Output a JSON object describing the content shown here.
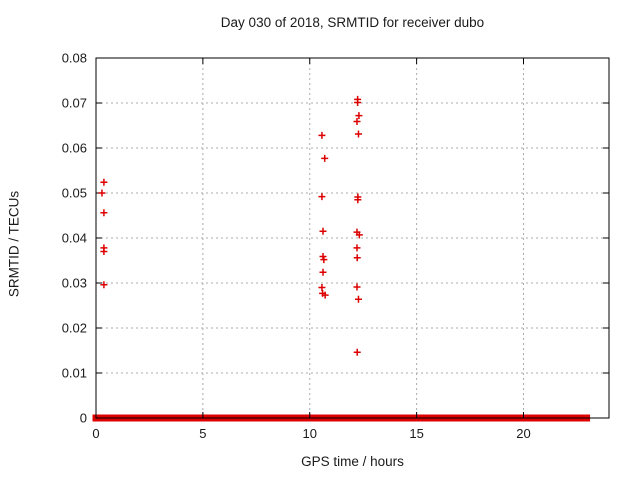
{
  "chart_data": {
    "type": "scatter",
    "title": "Day 030 of 2018, SRMTID for receiver dubo",
    "xlabel": "GPS time / hours",
    "ylabel": "SRMTID / TECUs",
    "xlim": [
      0,
      24
    ],
    "ylim": [
      0,
      0.08
    ],
    "xticks": [
      0,
      5,
      10,
      15,
      20
    ],
    "xtick_labels": [
      "0",
      "5",
      "10",
      "15",
      "20"
    ],
    "yticks": [
      0,
      0.01,
      0.02,
      0.03,
      0.04,
      0.05,
      0.06,
      0.07,
      0.08
    ],
    "ytick_labels": [
      "0",
      "0.01",
      "0.02",
      "0.03",
      "0.04",
      "0.05",
      "0.06",
      "0.07",
      "0.08"
    ],
    "grid": true,
    "legend": "none",
    "marker": "plus",
    "marker_color": "#dd0000",
    "axis_color": "#000000",
    "grid_color": "#ababab",
    "series": [
      {
        "name": "SRMTID",
        "points": [
          [
            0.37,
            0.0524
          ],
          [
            0.28,
            0.05
          ],
          [
            0.37,
            0.0456
          ],
          [
            0.37,
            0.0378
          ],
          [
            0.37,
            0.037
          ],
          [
            0.37,
            0.0296
          ],
          [
            10.57,
            0.0628
          ],
          [
            10.7,
            0.0577
          ],
          [
            10.57,
            0.0492
          ],
          [
            10.62,
            0.0415
          ],
          [
            10.62,
            0.0359
          ],
          [
            10.66,
            0.0352
          ],
          [
            10.62,
            0.0324
          ],
          [
            10.57,
            0.029
          ],
          [
            10.6,
            0.0277
          ],
          [
            10.72,
            0.0273
          ],
          [
            12.24,
            0.0708
          ],
          [
            12.24,
            0.0701
          ],
          [
            12.3,
            0.0672
          ],
          [
            12.21,
            0.0659
          ],
          [
            12.28,
            0.0631
          ],
          [
            12.25,
            0.0491
          ],
          [
            12.25,
            0.0485
          ],
          [
            12.21,
            0.0413
          ],
          [
            12.32,
            0.0407
          ],
          [
            12.21,
            0.0378
          ],
          [
            12.22,
            0.0356
          ],
          [
            12.21,
            0.0291
          ],
          [
            12.28,
            0.0264
          ],
          [
            12.22,
            0.0146
          ]
        ]
      }
    ],
    "zero_band_segments": [
      [
        0.0,
        0.4
      ],
      [
        0.5,
        3.05
      ],
      [
        3.2,
        5.15
      ],
      [
        5.3,
        6.5
      ],
      [
        6.65,
        8.6
      ],
      [
        8.75,
        10.55
      ],
      [
        10.75,
        11.55
      ],
      [
        11.7,
        12.3
      ],
      [
        12.5,
        14.25
      ],
      [
        14.4,
        14.55
      ],
      [
        14.65,
        14.95
      ],
      [
        15.05,
        16.5
      ],
      [
        16.7,
        18.8
      ],
      [
        18.95,
        22.0
      ],
      [
        22.1,
        22.95
      ]
    ]
  }
}
